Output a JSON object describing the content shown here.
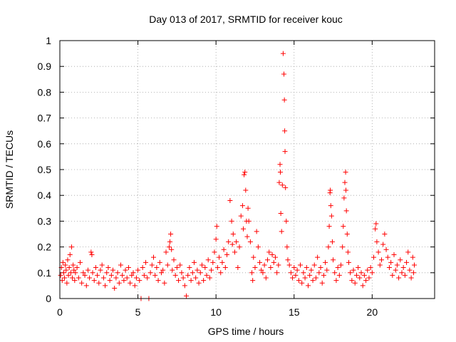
{
  "chart_data": {
    "type": "scatter",
    "title": "Day 013 of 2017, SRMTID for receiver kouc",
    "xlabel": "GPS time / hours",
    "ylabel": "SRMTID / TECUs",
    "xlim": [
      0,
      24
    ],
    "ylim": [
      0,
      1
    ],
    "x_ticks": [
      0,
      5,
      10,
      15,
      20
    ],
    "y_ticks": [
      0,
      0.1,
      0.2,
      0.3,
      0.4,
      0.5,
      0.6,
      0.7,
      0.8,
      0.9,
      1
    ],
    "x_tick_labels": [
      "0",
      "5",
      "10",
      "15",
      "20"
    ],
    "y_tick_labels": [
      "0",
      "0.1",
      "0.2",
      "0.3",
      "0.4",
      "0.5",
      "0.6",
      "0.7",
      "0.8",
      "0.9",
      "1"
    ],
    "grid": true,
    "marker": "+",
    "color": "#ff0000",
    "series": [
      {
        "name": "SRMTID",
        "points": [
          [
            0.05,
            0.09
          ],
          [
            0.1,
            0.12
          ],
          [
            0.15,
            0.07
          ],
          [
            0.2,
            0.14
          ],
          [
            0.25,
            0.1
          ],
          [
            0.3,
            0.08
          ],
          [
            0.35,
            0.13
          ],
          [
            0.4,
            0.11
          ],
          [
            0.45,
            0.06
          ],
          [
            0.5,
            0.15
          ],
          [
            0.55,
            0.09
          ],
          [
            0.6,
            0.12
          ],
          [
            0.65,
            0.17
          ],
          [
            0.7,
            0.1
          ],
          [
            0.75,
            0.2
          ],
          [
            0.8,
            0.08
          ],
          [
            0.85,
            0.13
          ],
          [
            0.9,
            0.11
          ],
          [
            0.95,
            0.07
          ],
          [
            1.0,
            0.1
          ],
          [
            1.1,
            0.12
          ],
          [
            1.2,
            0.08
          ],
          [
            1.3,
            0.14
          ],
          [
            1.4,
            0.06
          ],
          [
            1.5,
            0.1
          ],
          [
            1.6,
            0.09
          ],
          [
            1.7,
            0.05
          ],
          [
            1.8,
            0.11
          ],
          [
            1.9,
            0.08
          ],
          [
            2.0,
            0.18
          ],
          [
            2.05,
            0.17
          ],
          [
            2.1,
            0.1
          ],
          [
            2.2,
            0.07
          ],
          [
            2.3,
            0.12
          ],
          [
            2.4,
            0.09
          ],
          [
            2.5,
            0.06
          ],
          [
            2.6,
            0.11
          ],
          [
            2.7,
            0.13
          ],
          [
            2.8,
            0.08
          ],
          [
            2.9,
            0.05
          ],
          [
            3.0,
            0.1
          ],
          [
            3.1,
            0.12
          ],
          [
            3.2,
            0.07
          ],
          [
            3.3,
            0.09
          ],
          [
            3.4,
            0.11
          ],
          [
            3.5,
            0.04
          ],
          [
            3.6,
            0.08
          ],
          [
            3.7,
            0.1
          ],
          [
            3.8,
            0.06
          ],
          [
            3.9,
            0.13
          ],
          [
            4.0,
            0.09
          ],
          [
            4.1,
            0.07
          ],
          [
            4.2,
            0.11
          ],
          [
            4.3,
            0.08
          ],
          [
            4.4,
            0.12
          ],
          [
            4.5,
            0.06
          ],
          [
            4.6,
            0.09
          ],
          [
            4.7,
            0.1
          ],
          [
            4.8,
            0.05
          ],
          [
            4.9,
            0.08
          ],
          [
            5.0,
            0.11
          ],
          [
            5.1,
            0.07
          ],
          [
            5.2,
            0.0
          ],
          [
            5.3,
            0.12
          ],
          [
            5.4,
            0.09
          ],
          [
            5.5,
            0.14
          ],
          [
            5.6,
            0.08
          ],
          [
            5.7,
            0.0
          ],
          [
            5.8,
            0.1
          ],
          [
            5.9,
            0.13
          ],
          [
            6.0,
            0.16
          ],
          [
            6.1,
            0.09
          ],
          [
            6.2,
            0.12
          ],
          [
            6.3,
            0.07
          ],
          [
            6.4,
            0.14
          ],
          [
            6.5,
            0.1
          ],
          [
            6.6,
            0.11
          ],
          [
            6.7,
            0.06
          ],
          [
            6.8,
            0.18
          ],
          [
            6.9,
            0.13
          ],
          [
            7.0,
            0.2
          ],
          [
            7.05,
            0.22
          ],
          [
            7.1,
            0.25
          ],
          [
            7.15,
            0.19
          ],
          [
            7.2,
            0.11
          ],
          [
            7.3,
            0.15
          ],
          [
            7.4,
            0.09
          ],
          [
            7.5,
            0.12
          ],
          [
            7.6,
            0.07
          ],
          [
            7.7,
            0.13
          ],
          [
            7.8,
            0.1
          ],
          [
            7.9,
            0.08
          ],
          [
            8.0,
            0.05
          ],
          [
            8.1,
            0.01
          ],
          [
            8.2,
            0.09
          ],
          [
            8.3,
            0.12
          ],
          [
            8.4,
            0.07
          ],
          [
            8.5,
            0.1
          ],
          [
            8.6,
            0.14
          ],
          [
            8.7,
            0.08
          ],
          [
            8.8,
            0.11
          ],
          [
            8.9,
            0.06
          ],
          [
            9.0,
            0.1
          ],
          [
            9.1,
            0.13
          ],
          [
            9.2,
            0.07
          ],
          [
            9.3,
            0.12
          ],
          [
            9.4,
            0.09
          ],
          [
            9.5,
            0.15
          ],
          [
            9.6,
            0.08
          ],
          [
            9.7,
            0.11
          ],
          [
            9.8,
            0.14
          ],
          [
            9.9,
            0.18
          ],
          [
            10.0,
            0.23
          ],
          [
            10.05,
            0.28
          ],
          [
            10.1,
            0.12
          ],
          [
            10.2,
            0.16
          ],
          [
            10.3,
            0.1
          ],
          [
            10.4,
            0.14
          ],
          [
            10.5,
            0.19
          ],
          [
            10.6,
            0.12
          ],
          [
            10.7,
            0.17
          ],
          [
            10.8,
            0.22
          ],
          [
            10.9,
            0.38
          ],
          [
            11.0,
            0.3
          ],
          [
            11.05,
            0.21
          ],
          [
            11.1,
            0.25
          ],
          [
            11.2,
            0.18
          ],
          [
            11.3,
            0.22
          ],
          [
            11.4,
            0.12
          ],
          [
            11.5,
            0.2
          ],
          [
            11.6,
            0.32
          ],
          [
            11.7,
            0.36
          ],
          [
            11.75,
            0.27
          ],
          [
            11.8,
            0.48
          ],
          [
            11.85,
            0.49
          ],
          [
            11.9,
            0.42
          ],
          [
            11.95,
            0.3
          ],
          [
            12.0,
            0.24
          ],
          [
            12.05,
            0.35
          ],
          [
            12.1,
            0.3
          ],
          [
            12.2,
            0.22
          ],
          [
            12.3,
            0.1
          ],
          [
            12.35,
            0.07
          ],
          [
            12.4,
            0.16
          ],
          [
            12.5,
            0.12
          ],
          [
            12.6,
            0.26
          ],
          [
            12.7,
            0.2
          ],
          [
            12.8,
            0.14
          ],
          [
            12.9,
            0.11
          ],
          [
            13.0,
            0.1
          ],
          [
            13.1,
            0.13
          ],
          [
            13.2,
            0.08
          ],
          [
            13.3,
            0.15
          ],
          [
            13.4,
            0.18
          ],
          [
            13.5,
            0.12
          ],
          [
            13.6,
            0.17
          ],
          [
            13.7,
            0.14
          ],
          [
            13.8,
            0.16
          ],
          [
            13.9,
            0.1
          ],
          [
            14.0,
            0.13
          ],
          [
            14.05,
            0.45
          ],
          [
            14.1,
            0.52
          ],
          [
            14.12,
            0.49
          ],
          [
            14.15,
            0.33
          ],
          [
            14.2,
            0.26
          ],
          [
            14.25,
            0.44
          ],
          [
            14.3,
            0.95
          ],
          [
            14.35,
            0.87
          ],
          [
            14.38,
            0.77
          ],
          [
            14.4,
            0.65
          ],
          [
            14.42,
            0.57
          ],
          [
            14.45,
            0.43
          ],
          [
            14.5,
            0.3
          ],
          [
            14.55,
            0.2
          ],
          [
            14.6,
            0.15
          ],
          [
            14.7,
            0.13
          ],
          [
            14.8,
            0.1
          ],
          [
            14.9,
            0.08
          ],
          [
            15.0,
            0.12
          ],
          [
            15.1,
            0.09
          ],
          [
            15.2,
            0.11
          ],
          [
            15.3,
            0.07
          ],
          [
            15.4,
            0.13
          ],
          [
            15.5,
            0.06
          ],
          [
            15.6,
            0.1
          ],
          [
            15.7,
            0.08
          ],
          [
            15.8,
            0.12
          ],
          [
            15.9,
            0.05
          ],
          [
            16.0,
            0.09
          ],
          [
            16.1,
            0.11
          ],
          [
            16.2,
            0.07
          ],
          [
            16.3,
            0.13
          ],
          [
            16.4,
            0.08
          ],
          [
            16.5,
            0.16
          ],
          [
            16.6,
            0.1
          ],
          [
            16.7,
            0.12
          ],
          [
            16.8,
            0.06
          ],
          [
            16.9,
            0.09
          ],
          [
            17.0,
            0.14
          ],
          [
            17.1,
            0.11
          ],
          [
            17.2,
            0.2
          ],
          [
            17.25,
            0.28
          ],
          [
            17.3,
            0.41
          ],
          [
            17.32,
            0.42
          ],
          [
            17.35,
            0.36
          ],
          [
            17.4,
            0.32
          ],
          [
            17.45,
            0.22
          ],
          [
            17.5,
            0.15
          ],
          [
            17.6,
            0.1
          ],
          [
            17.7,
            0.07
          ],
          [
            17.8,
            0.12
          ],
          [
            17.9,
            0.09
          ],
          [
            18.0,
            0.13
          ],
          [
            18.1,
            0.2
          ],
          [
            18.15,
            0.28
          ],
          [
            18.2,
            0.39
          ],
          [
            18.25,
            0.45
          ],
          [
            18.3,
            0.49
          ],
          [
            18.32,
            0.42
          ],
          [
            18.35,
            0.34
          ],
          [
            18.4,
            0.25
          ],
          [
            18.45,
            0.18
          ],
          [
            18.5,
            0.14
          ],
          [
            18.6,
            0.1
          ],
          [
            18.7,
            0.07
          ],
          [
            18.8,
            0.11
          ],
          [
            18.9,
            0.06
          ],
          [
            19.0,
            0.09
          ],
          [
            19.1,
            0.12
          ],
          [
            19.2,
            0.08
          ],
          [
            19.3,
            0.1
          ],
          [
            19.4,
            0.05
          ],
          [
            19.5,
            0.09
          ],
          [
            19.6,
            0.07
          ],
          [
            19.7,
            0.11
          ],
          [
            19.8,
            0.08
          ],
          [
            19.9,
            0.12
          ],
          [
            20.0,
            0.1
          ],
          [
            20.1,
            0.16
          ],
          [
            20.2,
            0.27
          ],
          [
            20.25,
            0.29
          ],
          [
            20.3,
            0.22
          ],
          [
            20.4,
            0.18
          ],
          [
            20.5,
            0.13
          ],
          [
            20.6,
            0.15
          ],
          [
            20.7,
            0.21
          ],
          [
            20.8,
            0.25
          ],
          [
            20.9,
            0.19
          ],
          [
            21.0,
            0.16
          ],
          [
            21.1,
            0.12
          ],
          [
            21.2,
            0.14
          ],
          [
            21.3,
            0.09
          ],
          [
            21.4,
            0.17
          ],
          [
            21.5,
            0.11
          ],
          [
            21.6,
            0.13
          ],
          [
            21.7,
            0.08
          ],
          [
            21.8,
            0.15
          ],
          [
            21.9,
            0.1
          ],
          [
            22.0,
            0.12
          ],
          [
            22.1,
            0.09
          ],
          [
            22.2,
            0.14
          ],
          [
            22.3,
            0.18
          ],
          [
            22.4,
            0.11
          ],
          [
            22.5,
            0.08
          ],
          [
            22.6,
            0.16
          ],
          [
            22.65,
            0.1
          ],
          [
            22.7,
            0.13
          ]
        ]
      }
    ]
  }
}
